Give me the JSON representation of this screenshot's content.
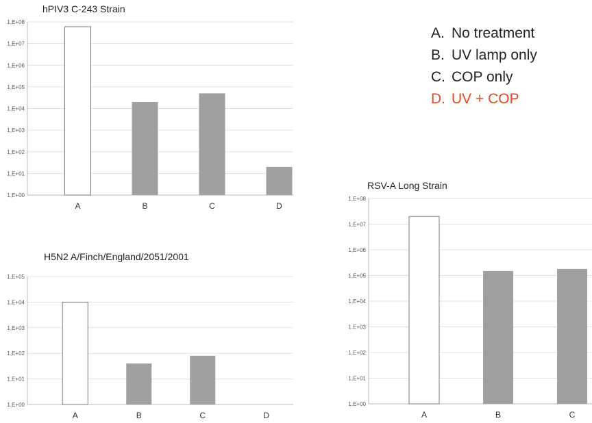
{
  "legend": {
    "items": [
      {
        "letter": "A.",
        "text": "No treatment",
        "color": "#222222"
      },
      {
        "letter": "B.",
        "text": "UV lamp only",
        "color": "#222222"
      },
      {
        "letter": "C.",
        "text": "COP only",
        "color": "#222222"
      },
      {
        "letter": "D.",
        "text": "UV + COP",
        "color": "#e8481c"
      }
    ]
  },
  "chart_data": [
    {
      "type": "bar",
      "title": "hPIV3 C-243 Strain",
      "categories": [
        "A",
        "B",
        "C",
        "D"
      ],
      "values": [
        60000000,
        20000,
        50000,
        20
      ],
      "yscale": "log",
      "ylim": [
        1,
        100000000
      ],
      "ytick_labels": [
        "1,E+00",
        "1,E+01",
        "1,E+02",
        "1,E+03",
        "1,E+04",
        "1,E+05",
        "1,E+06",
        "1,E+07",
        "1,E+08"
      ],
      "bar_colors": [
        "#ffffff",
        "#a0a0a0",
        "#a0a0a0",
        "#a0a0a0"
      ],
      "grid": true
    },
    {
      "type": "bar",
      "title": "H5N2 A/Finch/England/2051/2001",
      "categories": [
        "A",
        "B",
        "C",
        "D"
      ],
      "values": [
        10000,
        40,
        80,
        null
      ],
      "yscale": "log",
      "ylim": [
        1,
        100000
      ],
      "ytick_labels": [
        "1,E+00",
        "1,E+01",
        "1,E+02",
        "1,E+03",
        "1,E+04",
        "1,E+05"
      ],
      "bar_colors": [
        "#ffffff",
        "#a0a0a0",
        "#a0a0a0",
        "#a0a0a0"
      ],
      "grid": true
    },
    {
      "type": "bar",
      "title": "RSV-A Long Strain",
      "categories": [
        "A",
        "B",
        "C"
      ],
      "values": [
        20000000,
        150000,
        180000
      ],
      "yscale": "log",
      "ylim": [
        1,
        100000000
      ],
      "ytick_labels": [
        "1,E+00",
        "1,E+01",
        "1,E+02",
        "1,E+03",
        "1,E+04",
        "1,E+05",
        "1,E+06",
        "1,E+07",
        "1,E+08"
      ],
      "bar_colors": [
        "#ffffff",
        "#a0a0a0",
        "#a0a0a0"
      ],
      "grid": true
    }
  ]
}
